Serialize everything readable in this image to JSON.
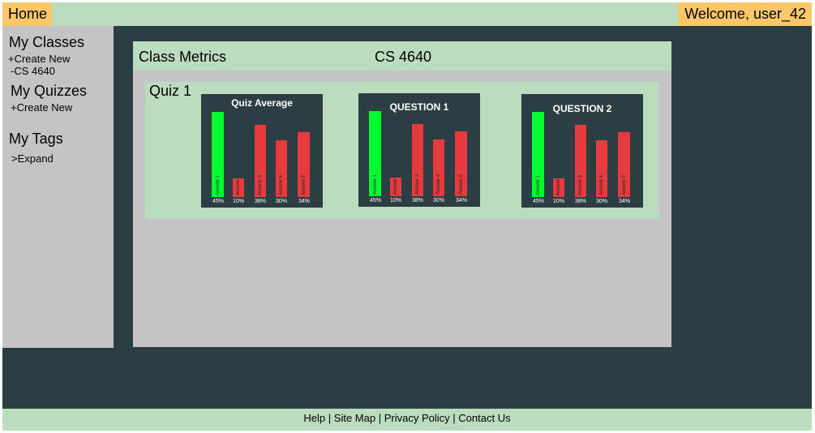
{
  "header": {
    "home_label": "Home",
    "welcome": "Welcome, user_42"
  },
  "sidebar": {
    "classes_heading": "My Classes",
    "classes_create": "+Create New",
    "classes_item": "-CS 4640",
    "quizzes_heading": "My Quizzes",
    "quizzes_create": "+Create New",
    "tags_heading": "My Tags",
    "tags_expand": "Expand",
    "tags_expand_icon": ">"
  },
  "main": {
    "title": "Class Metrics",
    "class_name": "CS 4640",
    "quiz_name": "Quiz 1"
  },
  "colors": {
    "correct": "#00ff2e",
    "incorrect": "#e63a3f"
  },
  "chart_data": [
    {
      "type": "bar",
      "title": "Quiz Average",
      "categories": [
        "Answer 1",
        "Answer 2",
        "Answer 3",
        "Answer 4",
        "Answer 5"
      ],
      "values": [
        45,
        10,
        38,
        30,
        34
      ],
      "value_labels": [
        "45%",
        "10%",
        "38%",
        "30%",
        "34%"
      ],
      "correct_index": 0,
      "ylim": [
        0,
        50
      ]
    },
    {
      "type": "bar",
      "title": "QUESTION 1",
      "categories": [
        "Answer 1",
        "Answer 2",
        "Answer 3",
        "Answer 4",
        "Answer 5"
      ],
      "values": [
        45,
        10,
        38,
        30,
        34
      ],
      "value_labels": [
        "45%",
        "10%",
        "38%",
        "30%",
        "34%"
      ],
      "correct_index": 0,
      "ylim": [
        0,
        50
      ]
    },
    {
      "type": "bar",
      "title": "QUESTION 2",
      "categories": [
        "Answer 1",
        "Answer 2",
        "Answer 3",
        "Answer 4",
        "Answer 5"
      ],
      "values": [
        45,
        10,
        38,
        30,
        34
      ],
      "value_labels": [
        "45%",
        "10%",
        "38%",
        "30%",
        "34%"
      ],
      "correct_index": 0,
      "ylim": [
        0,
        50
      ]
    }
  ],
  "footer": {
    "help": "Help",
    "sitemap": "Site Map",
    "privacy": "Privacy Policy",
    "contact": "Contact Us",
    "separator": "|"
  }
}
